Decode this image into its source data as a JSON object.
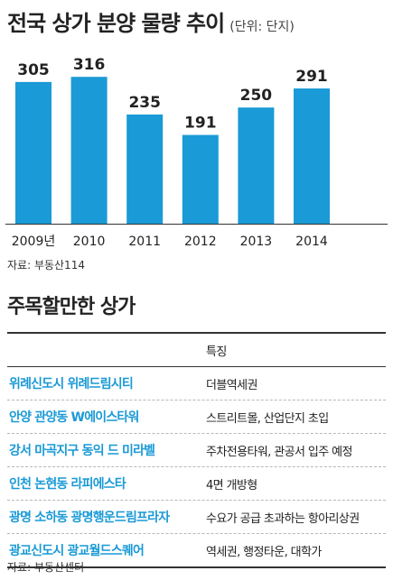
{
  "header": {
    "title": "전국 상가 분양 물량 추이",
    "unit": "(단위: 단지)"
  },
  "chart_data": {
    "type": "bar",
    "categories": [
      "2009년",
      "2010",
      "2011",
      "2012",
      "2013",
      "2014"
    ],
    "values": [
      305,
      316,
      235,
      191,
      250,
      291
    ],
    "ylim": [
      0,
      330
    ],
    "bar_color": "#1a9ad6",
    "grid": false
  },
  "chart_source": "자료: 부동산114",
  "section": {
    "title": "주목할만한 상가",
    "header_feature": "특징",
    "rows": [
      {
        "name": "위례신도시 위례드림시티",
        "feature": "더블역세권"
      },
      {
        "name": "안양 관양동 W에이스타워",
        "feature": "스트리트몰, 산업단지 초입"
      },
      {
        "name": "강서 마곡지구 동익 드 미라벨",
        "feature": "주차전용타워, 관공서 입주 예정"
      },
      {
        "name": "인천 논현동 라피에스타",
        "feature": "4면 개방형"
      },
      {
        "name": "광명 소하동 광명행운드림프라자",
        "feature": "수요가 공급 초과하는 항아리상권"
      },
      {
        "name": "광교신도시 광교월드스퀘어",
        "feature": "역세권, 행정타운, 대학가"
      }
    ],
    "source": "자료: 부동산센터"
  },
  "colors": {
    "accent": "#1a9ad6",
    "text": "#222222"
  }
}
